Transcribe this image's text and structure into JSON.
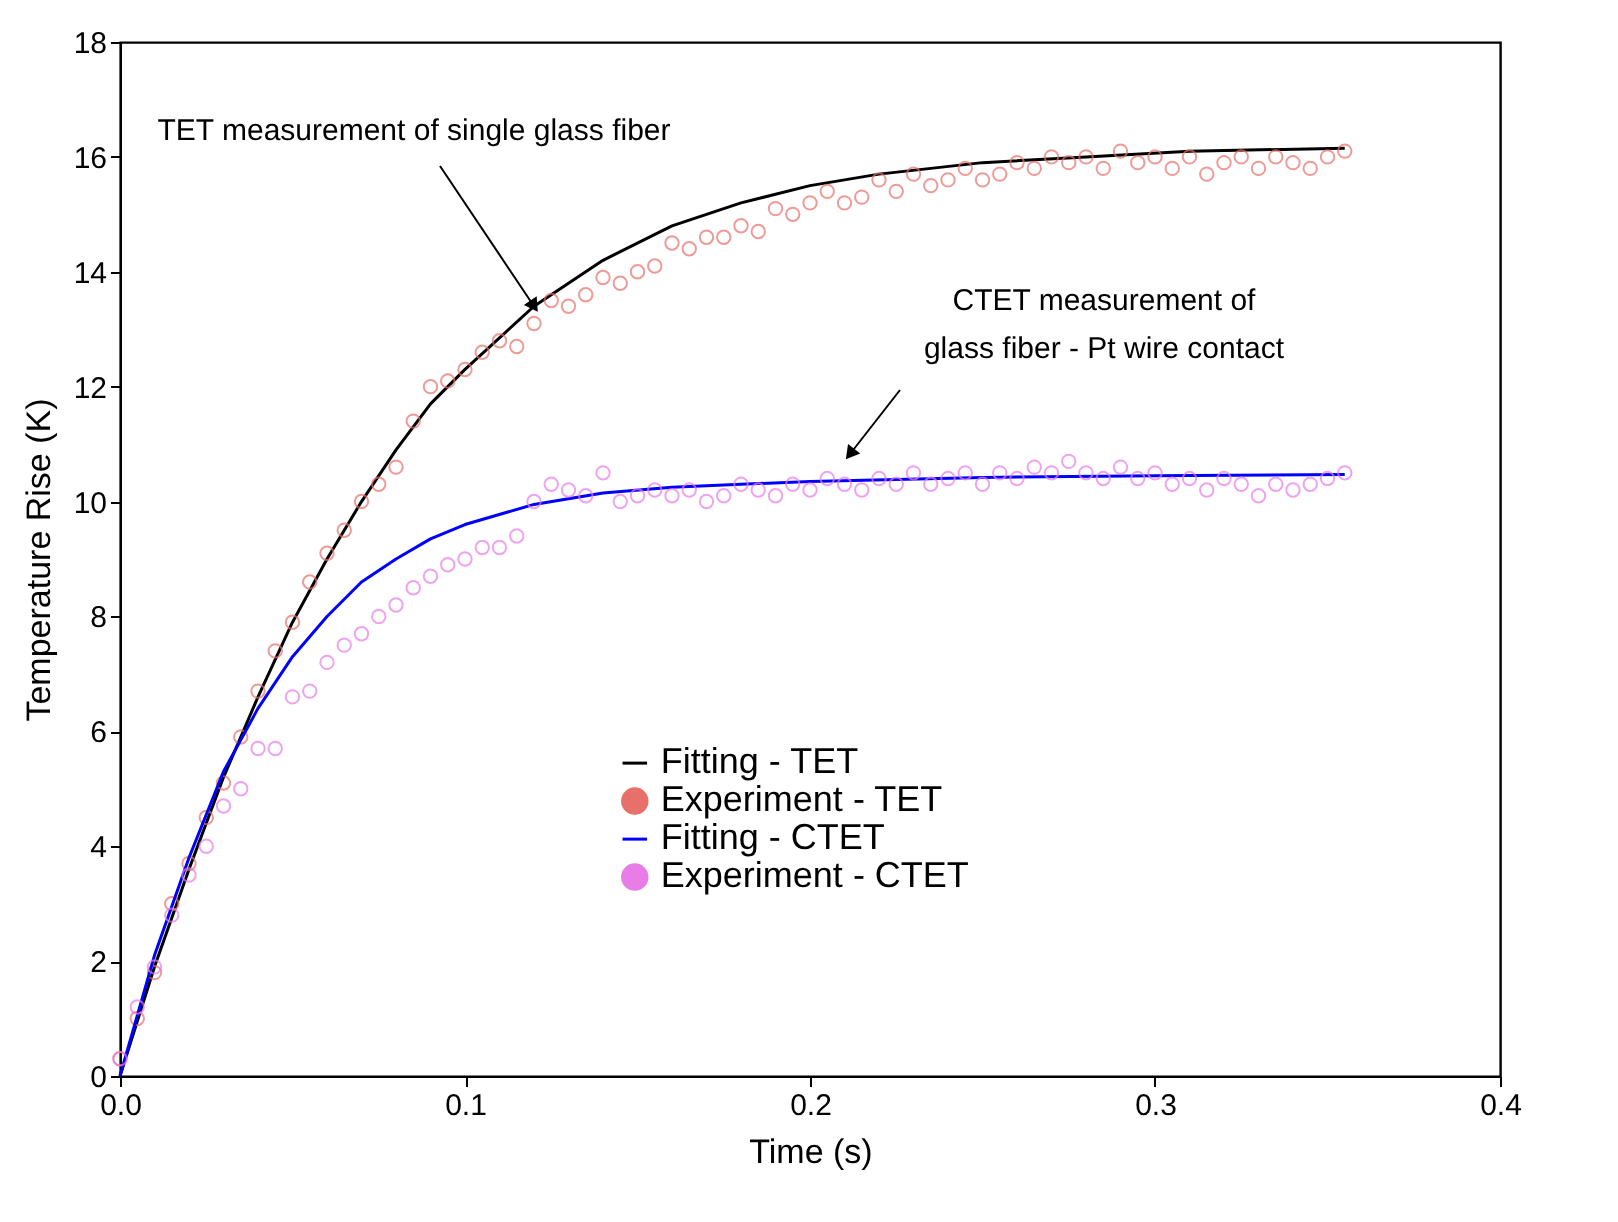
{
  "chart_data": {
    "type": "line",
    "xlabel": "Time (s)",
    "ylabel": "Temperature Rise (K)",
    "xlim": [
      0,
      0.4
    ],
    "xticks": [
      {
        "value": 0,
        "label": "0.0"
      },
      0.1,
      0.2,
      0.3,
      0.4
    ],
    "ylim": [
      0,
      18
    ],
    "yticks": [
      0,
      2,
      4,
      6,
      8,
      10,
      12,
      14,
      16,
      18
    ],
    "grid": false,
    "legend": "bottom",
    "annotations": [
      {
        "text": "TET measurement of single glass fiber",
        "x": 0.12,
        "y": 13.4
      },
      "CTET measurement of\nglass fiber - Pt wire contact"
    ],
    "series": [
      {
        "name": "Fitting - TET",
        "color": "#000000",
        "marker": "none",
        "line_style": "solid",
        "x": [
          0,
          0.01,
          0.02,
          0.03,
          0.04,
          0.05,
          0.06,
          0.07,
          0.08,
          0.09,
          0.1,
          0.12,
          0.14,
          0.16,
          0.18,
          0.2,
          0.22,
          0.25,
          0.28,
          0.31,
          0.355
        ],
        "values": [
          0,
          1.9,
          3.6,
          5.2,
          6.6,
          7.9,
          9.0,
          10.0,
          10.9,
          11.7,
          12.3,
          13.4,
          14.2,
          14.8,
          15.2,
          15.5,
          15.7,
          15.9,
          16.0,
          16.1,
          16.15
        ]
      },
      {
        "name": "Experiment - TET",
        "type": "scatter",
        "color": "#e8706a",
        "marker": "circle",
        "x": [
          0.0,
          0.005,
          0.01,
          0.015,
          0.02,
          0.025,
          0.03,
          0.035,
          0.04,
          0.045,
          0.05,
          0.055,
          0.06,
          0.065,
          0.07,
          0.075,
          0.08,
          0.085,
          0.09,
          0.095,
          0.1,
          0.105,
          0.11,
          0.115,
          0.12,
          0.125,
          0.13,
          0.135,
          0.14,
          0.145,
          0.15,
          0.155,
          0.16,
          0.165,
          0.17,
          0.175,
          0.18,
          0.185,
          0.19,
          0.195,
          0.2,
          0.205,
          0.21,
          0.215,
          0.22,
          0.225,
          0.23,
          0.235,
          0.24,
          0.245,
          0.25,
          0.255,
          0.26,
          0.265,
          0.27,
          0.275,
          0.28,
          0.285,
          0.29,
          0.295,
          0.3,
          0.305,
          0.31,
          0.315,
          0.32,
          0.325,
          0.33,
          0.335,
          0.34,
          0.345,
          0.35,
          0.355
        ],
        "values": [
          0.3,
          1.0,
          1.8,
          3.0,
          3.7,
          4.5,
          5.1,
          5.9,
          6.7,
          7.4,
          7.9,
          8.6,
          9.1,
          9.5,
          10.0,
          10.3,
          10.6,
          11.4,
          12.0,
          12.1,
          12.3,
          12.6,
          12.8,
          12.7,
          13.1,
          13.5,
          13.4,
          13.6,
          13.9,
          13.8,
          14.0,
          14.1,
          14.5,
          14.4,
          14.6,
          14.6,
          14.8,
          14.7,
          15.1,
          15.0,
          15.2,
          15.4,
          15.2,
          15.3,
          15.6,
          15.4,
          15.7,
          15.5,
          15.6,
          15.8,
          15.6,
          15.7,
          15.9,
          15.8,
          16.0,
          15.9,
          16.0,
          15.8,
          16.1,
          15.9,
          16.0,
          15.8,
          16.0,
          15.7,
          15.9,
          16.0,
          15.8,
          16.0,
          15.9,
          15.8,
          16.0,
          16.1
        ]
      },
      {
        "name": "Fitting - CTET",
        "color": "#0000ff",
        "marker": "none",
        "line_style": "solid",
        "x": [
          0,
          0.01,
          0.02,
          0.03,
          0.04,
          0.05,
          0.06,
          0.07,
          0.08,
          0.09,
          0.1,
          0.12,
          0.14,
          0.16,
          0.2,
          0.25,
          0.3,
          0.355
        ],
        "values": [
          0,
          2.1,
          3.8,
          5.3,
          6.4,
          7.3,
          8.0,
          8.6,
          9.0,
          9.35,
          9.6,
          9.95,
          10.15,
          10.25,
          10.35,
          10.42,
          10.45,
          10.47
        ]
      },
      {
        "name": "Experiment - CTET",
        "type": "scatter",
        "color": "#e87de8",
        "marker": "circle",
        "x": [
          0.0,
          0.005,
          0.01,
          0.015,
          0.02,
          0.025,
          0.03,
          0.035,
          0.04,
          0.045,
          0.05,
          0.055,
          0.06,
          0.065,
          0.07,
          0.075,
          0.08,
          0.085,
          0.09,
          0.095,
          0.1,
          0.105,
          0.11,
          0.115,
          0.12,
          0.125,
          0.13,
          0.135,
          0.14,
          0.145,
          0.15,
          0.155,
          0.16,
          0.165,
          0.17,
          0.175,
          0.18,
          0.185,
          0.19,
          0.195,
          0.2,
          0.205,
          0.21,
          0.215,
          0.22,
          0.225,
          0.23,
          0.235,
          0.24,
          0.245,
          0.25,
          0.255,
          0.26,
          0.265,
          0.27,
          0.275,
          0.28,
          0.285,
          0.29,
          0.295,
          0.3,
          0.305,
          0.31,
          0.315,
          0.32,
          0.325,
          0.33,
          0.335,
          0.34,
          0.345,
          0.35,
          0.355
        ],
        "values": [
          0.3,
          1.2,
          1.9,
          2.8,
          3.5,
          4.0,
          4.7,
          5.0,
          5.7,
          5.7,
          6.6,
          6.7,
          7.2,
          7.5,
          7.7,
          8.0,
          8.2,
          8.5,
          8.7,
          8.9,
          9.0,
          9.2,
          9.2,
          9.4,
          10.0,
          10.3,
          10.2,
          10.1,
          10.5,
          10.0,
          10.1,
          10.2,
          10.1,
          10.2,
          10.0,
          10.1,
          10.3,
          10.2,
          10.1,
          10.3,
          10.2,
          10.4,
          10.3,
          10.2,
          10.4,
          10.3,
          10.5,
          10.3,
          10.4,
          10.5,
          10.3,
          10.5,
          10.4,
          10.6,
          10.5,
          10.7,
          10.5,
          10.4,
          10.6,
          10.4,
          10.5,
          10.3,
          10.4,
          10.2,
          10.4,
          10.3,
          10.1,
          10.3,
          10.2,
          10.3,
          10.4,
          10.5
        ]
      }
    ]
  }
}
